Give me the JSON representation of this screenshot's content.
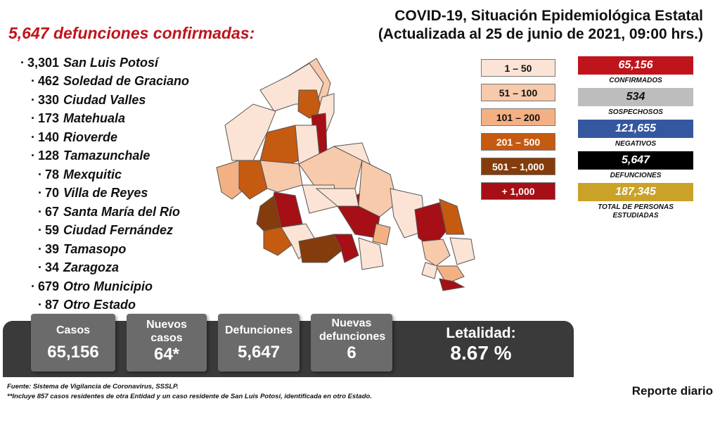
{
  "header": {
    "title": "COVID-19, Situación Epidemiológica Estatal",
    "subtitle": "(Actualizada al 25 de junio de 2021, 09:00 hrs.)"
  },
  "deaths_title": "5,647 defunciones confirmadas:",
  "municipalities": [
    {
      "num": "3,301",
      "name": "San Luis Potosí"
    },
    {
      "num": "462",
      "name": "Soledad de Graciano"
    },
    {
      "num": "330",
      "name": "Ciudad Valles"
    },
    {
      "num": "173",
      "name": "Matehuala"
    },
    {
      "num": "140",
      "name": "Rioverde"
    },
    {
      "num": "128",
      "name": "Tamazunchale"
    },
    {
      "num": "78",
      "name": "Mexquitic"
    },
    {
      "num": "70",
      "name": "Villa de Reyes"
    },
    {
      "num": "67",
      "name": "Santa María del Río"
    },
    {
      "num": "59",
      "name": "Ciudad Fernández"
    },
    {
      "num": "39",
      "name": "Tamasopo"
    },
    {
      "num": "34",
      "name": "Zaragoza"
    },
    {
      "num": "679",
      "name": "Otro Municipio"
    },
    {
      "num": "87",
      "name": "Otro Estado"
    }
  ],
  "legend": [
    {
      "label": "1 – 50",
      "color": "#fbe4d5",
      "text": "#111111"
    },
    {
      "label": "51 – 100",
      "color": "#f7caac",
      "text": "#111111"
    },
    {
      "label": "101 – 200",
      "color": "#f4b083",
      "text": "#111111"
    },
    {
      "label": "201 – 500",
      "color": "#c55a11",
      "text": "#ffffff"
    },
    {
      "label": "501 – 1,000",
      "color": "#843c0c",
      "text": "#ffffff"
    },
    {
      "label": "+ 1,000",
      "color": "#a50f15",
      "text": "#ffffff"
    }
  ],
  "stats": [
    {
      "value": "65,156",
      "label": "CONFIRMADOS",
      "color": "#c0141c"
    },
    {
      "value": "534",
      "label": "SOSPECHOSOS",
      "color": "#bdbdbd"
    },
    {
      "value": "121,655",
      "label": "NEGATIVOS",
      "color": "#3557a0"
    },
    {
      "value": "5,647",
      "label": "DEFUNCIONES",
      "color": "#000000"
    },
    {
      "value": "187,345",
      "label": "TOTAL DE PERSONAS ESTUDIADAS",
      "color": "#c9a227"
    }
  ],
  "cards": {
    "casos": {
      "title": "Casos",
      "value": "65,156"
    },
    "nuevos_casos": {
      "title": "Nuevos casos",
      "value": "64*"
    },
    "defunciones": {
      "title": "Defunciones",
      "value": "5,647"
    },
    "nuevas_defunciones": {
      "title": "Nuevas defunciones",
      "value": "6"
    },
    "letalidad": {
      "title": "Letalidad:",
      "value": "8.67 %"
    }
  },
  "footer": {
    "source": "Fuente: Sistema de Vigilancia de Coronavirus, SSSLP.",
    "note": "**Incluye 857 casos residentes de otra Entidad y un caso residente de San Luis Potosí, identificada en otro Estado.",
    "report": "Reporte diario"
  }
}
